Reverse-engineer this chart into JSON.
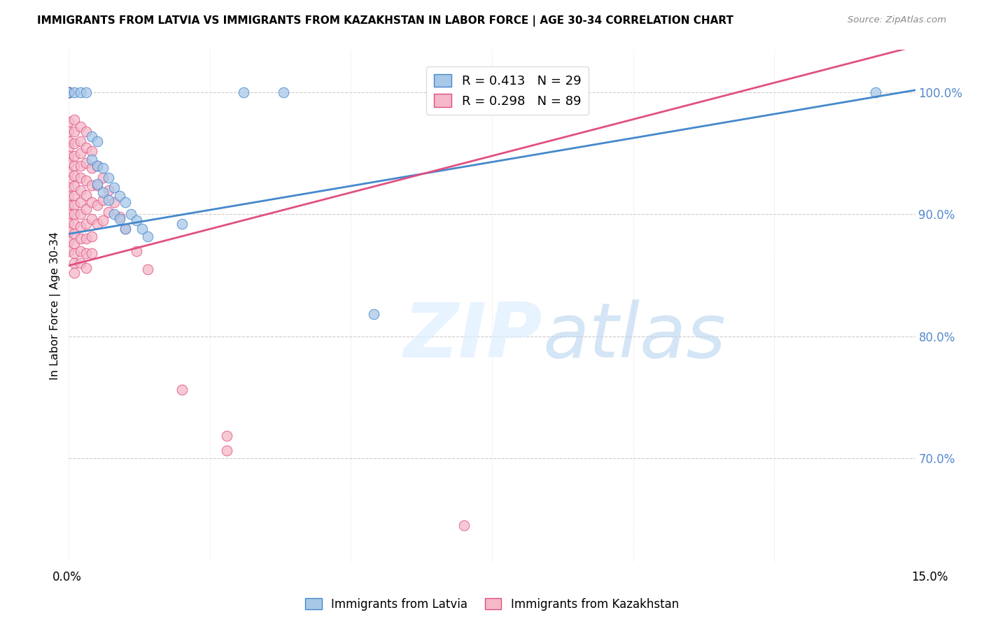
{
  "title": "IMMIGRANTS FROM LATVIA VS IMMIGRANTS FROM KAZAKHSTAN IN LABOR FORCE | AGE 30-34 CORRELATION CHART",
  "source": "Source: ZipAtlas.com",
  "ylabel": "In Labor Force | Age 30-34",
  "ytick_labels": [
    "100.0%",
    "90.0%",
    "80.0%",
    "70.0%"
  ],
  "ytick_values": [
    1.0,
    0.9,
    0.8,
    0.7
  ],
  "xlim": [
    0.0,
    0.15
  ],
  "ylim": [
    0.615,
    1.035
  ],
  "legend_label_blue": "Immigrants from Latvia",
  "legend_label_pink": "Immigrants from Kazakhstan",
  "R_blue": 0.413,
  "N_blue": 29,
  "R_pink": 0.298,
  "N_pink": 89,
  "blue_color": "#a8c8e8",
  "pink_color": "#f4b8c8",
  "blue_line_color": "#4488cc",
  "pink_line_color": "#e05080",
  "blue_line": [
    [
      0.0,
      0.884
    ],
    [
      0.15,
      1.002
    ]
  ],
  "pink_line": [
    [
      0.0,
      0.858
    ],
    [
      0.1,
      0.978
    ]
  ],
  "scatter_blue": [
    [
      0.0,
      1.0
    ],
    [
      0.0,
      1.0
    ],
    [
      0.001,
      1.0
    ],
    [
      0.002,
      1.0
    ],
    [
      0.003,
      1.0
    ],
    [
      0.004,
      0.964
    ],
    [
      0.004,
      0.945
    ],
    [
      0.005,
      0.96
    ],
    [
      0.005,
      0.94
    ],
    [
      0.005,
      0.925
    ],
    [
      0.006,
      0.938
    ],
    [
      0.006,
      0.918
    ],
    [
      0.007,
      0.93
    ],
    [
      0.007,
      0.912
    ],
    [
      0.008,
      0.922
    ],
    [
      0.008,
      0.9
    ],
    [
      0.009,
      0.915
    ],
    [
      0.009,
      0.896
    ],
    [
      0.01,
      0.91
    ],
    [
      0.01,
      0.888
    ],
    [
      0.011,
      0.9
    ],
    [
      0.012,
      0.895
    ],
    [
      0.013,
      0.888
    ],
    [
      0.014,
      0.882
    ],
    [
      0.02,
      0.892
    ],
    [
      0.031,
      1.0
    ],
    [
      0.038,
      1.0
    ],
    [
      0.054,
      0.818
    ],
    [
      0.143,
      1.0
    ]
  ],
  "scatter_pink": [
    [
      0.0,
      1.0
    ],
    [
      0.0,
      1.0
    ],
    [
      0.0,
      1.0
    ],
    [
      0.0,
      1.0
    ],
    [
      0.0,
      1.0
    ],
    [
      0.0,
      1.0
    ],
    [
      0.0,
      1.0
    ],
    [
      0.0,
      1.0
    ],
    [
      0.0,
      1.0
    ],
    [
      0.0,
      1.0
    ],
    [
      0.0,
      0.976
    ],
    [
      0.0,
      0.968
    ],
    [
      0.0,
      0.96
    ],
    [
      0.0,
      0.955
    ],
    [
      0.0,
      0.948
    ],
    [
      0.0,
      0.942
    ],
    [
      0.0,
      0.935
    ],
    [
      0.0,
      0.928
    ],
    [
      0.0,
      0.922
    ],
    [
      0.0,
      0.915
    ],
    [
      0.0,
      0.908
    ],
    [
      0.0,
      0.9
    ],
    [
      0.0,
      0.893
    ],
    [
      0.0,
      0.886
    ],
    [
      0.0,
      0.878
    ],
    [
      0.0,
      0.87
    ],
    [
      0.001,
      0.978
    ],
    [
      0.001,
      0.968
    ],
    [
      0.001,
      0.958
    ],
    [
      0.001,
      0.948
    ],
    [
      0.001,
      0.94
    ],
    [
      0.001,
      0.932
    ],
    [
      0.001,
      0.923
    ],
    [
      0.001,
      0.915
    ],
    [
      0.001,
      0.908
    ],
    [
      0.001,
      0.9
    ],
    [
      0.001,
      0.892
    ],
    [
      0.001,
      0.884
    ],
    [
      0.001,
      0.876
    ],
    [
      0.001,
      0.868
    ],
    [
      0.001,
      0.86
    ],
    [
      0.001,
      0.852
    ],
    [
      0.002,
      0.972
    ],
    [
      0.002,
      0.96
    ],
    [
      0.002,
      0.95
    ],
    [
      0.002,
      0.94
    ],
    [
      0.002,
      0.93
    ],
    [
      0.002,
      0.92
    ],
    [
      0.002,
      0.91
    ],
    [
      0.002,
      0.9
    ],
    [
      0.002,
      0.89
    ],
    [
      0.002,
      0.88
    ],
    [
      0.002,
      0.87
    ],
    [
      0.002,
      0.86
    ],
    [
      0.003,
      0.968
    ],
    [
      0.003,
      0.955
    ],
    [
      0.003,
      0.942
    ],
    [
      0.003,
      0.928
    ],
    [
      0.003,
      0.916
    ],
    [
      0.003,
      0.904
    ],
    [
      0.003,
      0.892
    ],
    [
      0.003,
      0.88
    ],
    [
      0.003,
      0.868
    ],
    [
      0.003,
      0.856
    ],
    [
      0.004,
      0.952
    ],
    [
      0.004,
      0.938
    ],
    [
      0.004,
      0.924
    ],
    [
      0.004,
      0.91
    ],
    [
      0.004,
      0.896
    ],
    [
      0.004,
      0.882
    ],
    [
      0.004,
      0.868
    ],
    [
      0.005,
      0.94
    ],
    [
      0.005,
      0.924
    ],
    [
      0.005,
      0.908
    ],
    [
      0.005,
      0.892
    ],
    [
      0.006,
      0.93
    ],
    [
      0.006,
      0.912
    ],
    [
      0.006,
      0.895
    ],
    [
      0.007,
      0.92
    ],
    [
      0.007,
      0.902
    ],
    [
      0.008,
      0.91
    ],
    [
      0.009,
      0.898
    ],
    [
      0.01,
      0.888
    ],
    [
      0.012,
      0.87
    ],
    [
      0.014,
      0.855
    ],
    [
      0.02,
      0.756
    ],
    [
      0.028,
      0.718
    ],
    [
      0.028,
      0.706
    ],
    [
      0.07,
      0.645
    ]
  ],
  "grid_color": "#cccccc",
  "background_color": "#ffffff"
}
